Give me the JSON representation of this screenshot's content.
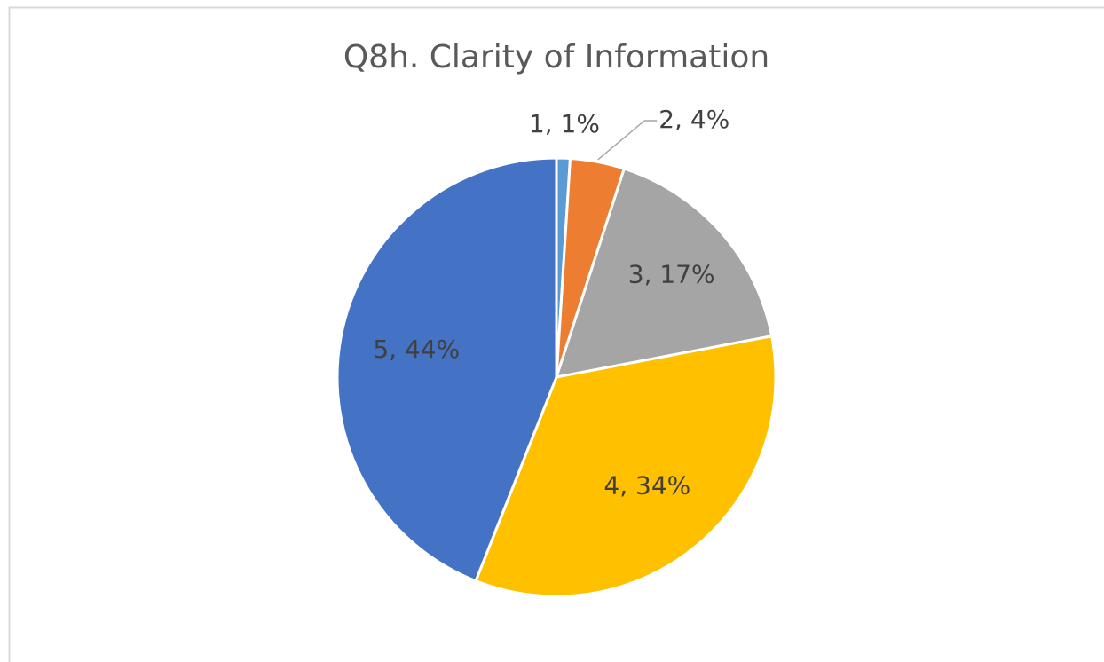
{
  "chart_data": {
    "type": "pie",
    "title": "Q8h. Clarity of Information",
    "values": [
      1,
      4,
      17,
      34,
      44
    ],
    "value_labels": [
      "1, 1%",
      "2, 4%",
      "3, 17%",
      "4, 34%",
      "5, 44%"
    ],
    "colors": [
      "#5b9bd5",
      "#ed7d31",
      "#a5a5a5",
      "#ffc000",
      "#4472c4"
    ]
  }
}
